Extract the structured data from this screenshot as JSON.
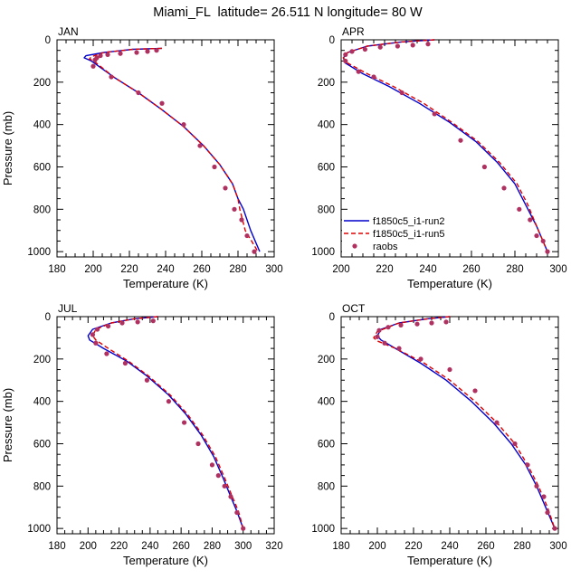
{
  "title": "Miami_FL  latitude= 26.511 N longitude= 80 W",
  "legend": {
    "entries": [
      {
        "label": "f1850c5_i1-run2",
        "color": "#0000cc",
        "style": "solid"
      },
      {
        "label": "f1850c5_i1-run5",
        "color": "#dd0000",
        "style": "dashed"
      },
      {
        "label": "raobs",
        "color": "#b03060",
        "style": "marker"
      }
    ]
  },
  "chart_data": [
    {
      "type": "line",
      "panel": "JAN",
      "title": "JAN",
      "xlabel": "Temperature (K)",
      "ylabel": "Pressure (mb)",
      "xlim": [
        180,
        300
      ],
      "ylim": [
        1025,
        0
      ],
      "y_inverted": true,
      "xticks": [
        180,
        200,
        220,
        240,
        260,
        280,
        300
      ],
      "yticks": [
        0,
        200,
        400,
        600,
        800,
        1000
      ],
      "series": [
        {
          "name": "f1850c5_i1-run2",
          "x": [
            238,
            222,
            206,
            196,
            195,
            199,
            212,
            225,
            238,
            250,
            261,
            270,
            277,
            280,
            283,
            287,
            292
          ],
          "y": [
            40,
            45,
            60,
            75,
            85,
            100,
            180,
            250,
            330,
            410,
            500,
            590,
            680,
            750,
            800,
            900,
            1000
          ]
        },
        {
          "name": "f1850c5_i1-run5",
          "x": [
            238,
            222,
            206,
            199,
            198,
            201,
            212,
            225,
            238,
            250,
            261,
            270,
            277,
            280,
            281,
            284,
            291
          ],
          "y": [
            40,
            45,
            60,
            80,
            90,
            105,
            180,
            250,
            330,
            410,
            500,
            590,
            680,
            750,
            800,
            900,
            1000
          ]
        },
        {
          "name": "raobs",
          "x": [
            235,
            230,
            224,
            215,
            208,
            204,
            202,
            201,
            200,
            210,
            225,
            238,
            250,
            259,
            267,
            273,
            278,
            282,
            285,
            289
          ],
          "y": [
            50,
            55,
            60,
            65,
            70,
            75,
            85,
            95,
            125,
            175,
            250,
            300,
            400,
            500,
            600,
            700,
            800,
            850,
            925,
            1000
          ]
        }
      ]
    },
    {
      "type": "line",
      "panel": "APR",
      "title": "APR",
      "xlabel": "Temperature (K)",
      "ylabel": "",
      "xlim": [
        200,
        300
      ],
      "ylim": [
        1025,
        0
      ],
      "y_inverted": true,
      "xticks": [
        200,
        220,
        240,
        260,
        280,
        300
      ],
      "yticks": [
        0,
        200,
        400,
        600,
        800,
        1000
      ],
      "series": [
        {
          "name": "f1850c5_i1-run2",
          "x": [
            243,
            228,
            212,
            203,
            201,
            202,
            210,
            222,
            236,
            250,
            262,
            272,
            280,
            285,
            290,
            295
          ],
          "y": [
            0,
            10,
            30,
            60,
            85,
            110,
            160,
            220,
            300,
            390,
            480,
            580,
            680,
            780,
            880,
            1000
          ]
        },
        {
          "name": "f1850c5_i1-run5",
          "x": [
            243,
            228,
            212,
            203,
            201,
            203,
            212,
            224,
            238,
            251,
            263,
            273,
            281,
            286,
            290,
            295
          ],
          "y": [
            0,
            10,
            30,
            60,
            85,
            110,
            160,
            220,
            300,
            390,
            480,
            580,
            680,
            780,
            880,
            1000
          ]
        },
        {
          "name": "raobs",
          "x": [
            240,
            233,
            226,
            218,
            211,
            205,
            202,
            202,
            208,
            215,
            228,
            243,
            255,
            266,
            275,
            282,
            287,
            290,
            293,
            295
          ],
          "y": [
            20,
            25,
            30,
            35,
            45,
            55,
            70,
            100,
            150,
            175,
            250,
            350,
            475,
            600,
            700,
            800,
            850,
            925,
            950,
            1000
          ]
        }
      ]
    },
    {
      "type": "line",
      "panel": "JUL",
      "title": "JUL",
      "xlabel": "Temperature (K)",
      "ylabel": "Pressure (mb)",
      "xlim": [
        180,
        320
      ],
      "ylim": [
        1025,
        0
      ],
      "y_inverted": true,
      "xticks": [
        180,
        200,
        220,
        240,
        260,
        280,
        300,
        320
      ],
      "yticks": [
        0,
        200,
        400,
        600,
        800,
        1000
      ],
      "series": [
        {
          "name": "f1850c5_i1-run2",
          "x": [
            245,
            230,
            215,
            203,
            200,
            201,
            210,
            225,
            238,
            252,
            263,
            273,
            281,
            287,
            292,
            296,
            300
          ],
          "y": [
            0,
            10,
            30,
            60,
            90,
            110,
            150,
            210,
            280,
            370,
            460,
            560,
            660,
            760,
            850,
            920,
            1000
          ]
        },
        {
          "name": "f1850c5_i1-run5",
          "x": [
            245,
            230,
            215,
            205,
            203,
            205,
            213,
            226,
            239,
            253,
            264,
            274,
            282,
            288,
            293,
            297,
            300
          ],
          "y": [
            0,
            10,
            30,
            60,
            90,
            110,
            150,
            210,
            280,
            370,
            460,
            560,
            660,
            760,
            850,
            920,
            1000
          ]
        },
        {
          "name": "raobs",
          "x": [
            242,
            232,
            222,
            213,
            206,
            203,
            205,
            212,
            224,
            238,
            252,
            262,
            271,
            280,
            284,
            288,
            292,
            296,
            300
          ],
          "y": [
            20,
            25,
            30,
            45,
            60,
            85,
            125,
            175,
            220,
            300,
            400,
            500,
            600,
            700,
            750,
            800,
            850,
            925,
            1000
          ]
        }
      ]
    },
    {
      "type": "line",
      "panel": "OCT",
      "title": "OCT",
      "xlabel": "Temperature (K)",
      "ylabel": "",
      "xlim": [
        180,
        300
      ],
      "ylim": [
        1025,
        0
      ],
      "y_inverted": true,
      "xticks": [
        180,
        200,
        220,
        240,
        260,
        280,
        300
      ],
      "yticks": [
        0,
        200,
        400,
        600,
        800,
        1000
      ],
      "series": [
        {
          "name": "f1850c5_i1-run2",
          "x": [
            240,
            228,
            212,
            202,
            200,
            202,
            210,
            224,
            238,
            252,
            264,
            274,
            282,
            288,
            293,
            298
          ],
          "y": [
            0,
            10,
            30,
            60,
            90,
            110,
            150,
            220,
            300,
            400,
            500,
            600,
            700,
            800,
            900,
            1000
          ]
        },
        {
          "name": "f1850c5_i1-run5",
          "x": [
            240,
            228,
            212,
            200,
            198,
            200,
            210,
            226,
            240,
            254,
            266,
            276,
            283,
            289,
            294,
            298
          ],
          "y": [
            0,
            10,
            30,
            70,
            100,
            115,
            150,
            220,
            300,
            400,
            500,
            600,
            700,
            800,
            900,
            1000
          ]
        },
        {
          "name": "raobs",
          "x": [
            238,
            230,
            222,
            213,
            206,
            201,
            200,
            204,
            212,
            224,
            240,
            254,
            266,
            276,
            283,
            288,
            292,
            294,
            298
          ],
          "y": [
            25,
            30,
            35,
            40,
            50,
            65,
            95,
            125,
            150,
            200,
            250,
            350,
            500,
            600,
            700,
            800,
            850,
            925,
            1000
          ]
        }
      ]
    }
  ]
}
